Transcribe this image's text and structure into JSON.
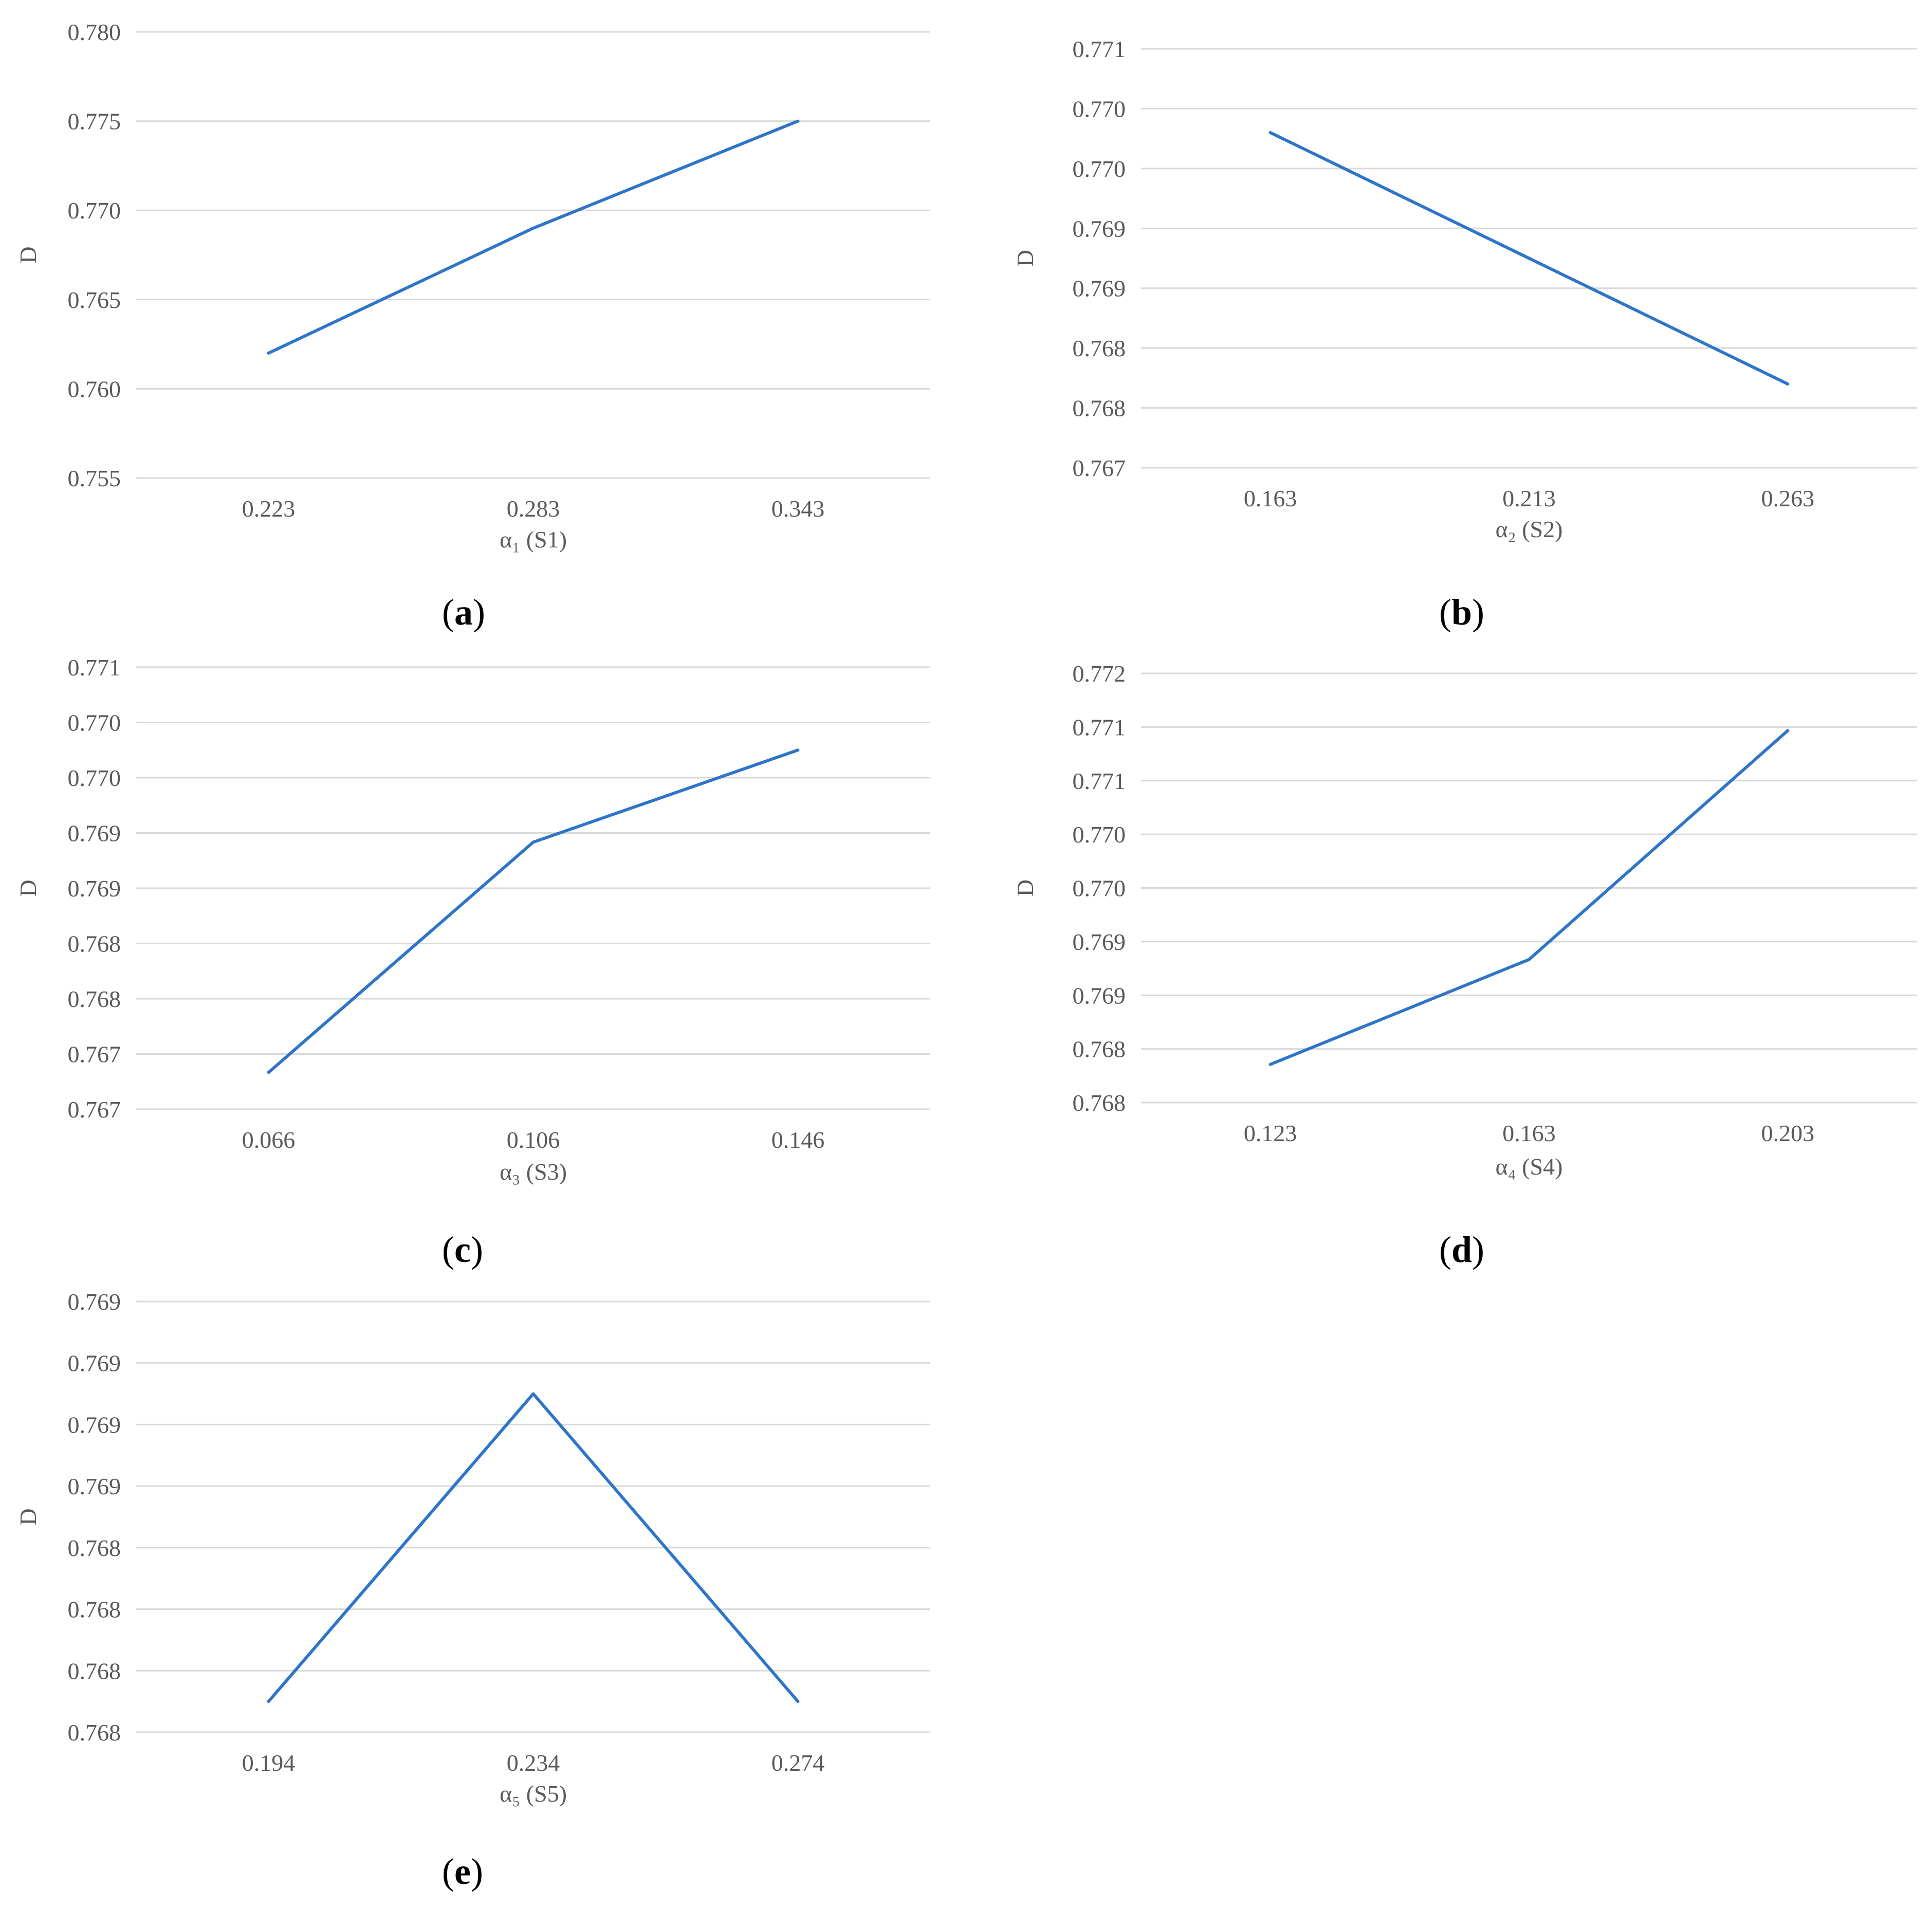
{
  "colors": {
    "series": "#2e75c8",
    "grid": "#d9d9d9",
    "text": "#595959"
  },
  "chart_data": [
    {
      "panel": "a",
      "type": "line",
      "title": "",
      "xlabel": "α₁ (S1)",
      "ylabel": "D",
      "categories": [
        "0.223",
        "0.283",
        "0.343"
      ],
      "values": [
        0.762,
        0.769,
        0.775
      ],
      "yticks": [
        "0.755",
        "0.760",
        "0.765",
        "0.770",
        "0.775",
        "0.780"
      ],
      "ylim": [
        0.755,
        0.78
      ],
      "grid": true
    },
    {
      "panel": "b",
      "type": "line",
      "title": "",
      "xlabel": "α₂ (S2)",
      "ylabel": "D",
      "categories": [
        "0.163",
        "0.213",
        "0.263"
      ],
      "values": [
        0.7705,
        0.769,
        0.7675
      ],
      "yticks": [
        "0.767",
        "0.768",
        "0.768",
        "0.769",
        "0.769",
        "0.770",
        "0.770",
        "0.771"
      ],
      "ylim": [
        0.7665,
        0.7715
      ],
      "grid": true
    },
    {
      "panel": "c",
      "type": "line",
      "title": "",
      "xlabel": "α₃ (S3)",
      "ylabel": "D",
      "categories": [
        "0.066",
        "0.106",
        "0.146"
      ],
      "values": [
        0.767,
        0.7695,
        0.7705
      ],
      "yticks": [
        "0.767",
        "0.767",
        "0.768",
        "0.768",
        "0.769",
        "0.769",
        "0.770",
        "0.770",
        "0.771"
      ],
      "ylim": [
        0.7666,
        0.7714
      ],
      "grid": true
    },
    {
      "panel": "d",
      "type": "line",
      "title": "",
      "xlabel": "α₄ (S4)",
      "ylabel": "D",
      "categories": [
        "0.123",
        "0.163",
        "0.203"
      ],
      "values": [
        0.7679,
        0.769,
        0.7714
      ],
      "yticks": [
        "0.768",
        "0.768",
        "0.769",
        "0.769",
        "0.770",
        "0.770",
        "0.771",
        "0.771",
        "0.772"
      ],
      "ylim": [
        0.7675,
        0.772
      ],
      "grid": true
    },
    {
      "panel": "e",
      "type": "line",
      "title": "",
      "xlabel": "α₅ (S5)",
      "ylabel": "D",
      "categories": [
        "0.194",
        "0.234",
        "0.274"
      ],
      "values": [
        0.768,
        0.769,
        0.768
      ],
      "yticks": [
        "0.768",
        "0.768",
        "0.768",
        "0.768",
        "0.769",
        "0.769",
        "0.769",
        "0.769"
      ],
      "ylim": [
        0.7679,
        0.7693
      ],
      "grid": true
    }
  ],
  "panel_labels": [
    {
      "open": "(",
      "letter": "a",
      "close": ")"
    },
    {
      "open": "(",
      "letter": "b",
      "close": ")"
    },
    {
      "open": "(",
      "letter": "c",
      "close": ")"
    },
    {
      "open": "(",
      "letter": "d",
      "close": ")"
    },
    {
      "open": "(",
      "letter": "e",
      "close": ")"
    }
  ]
}
